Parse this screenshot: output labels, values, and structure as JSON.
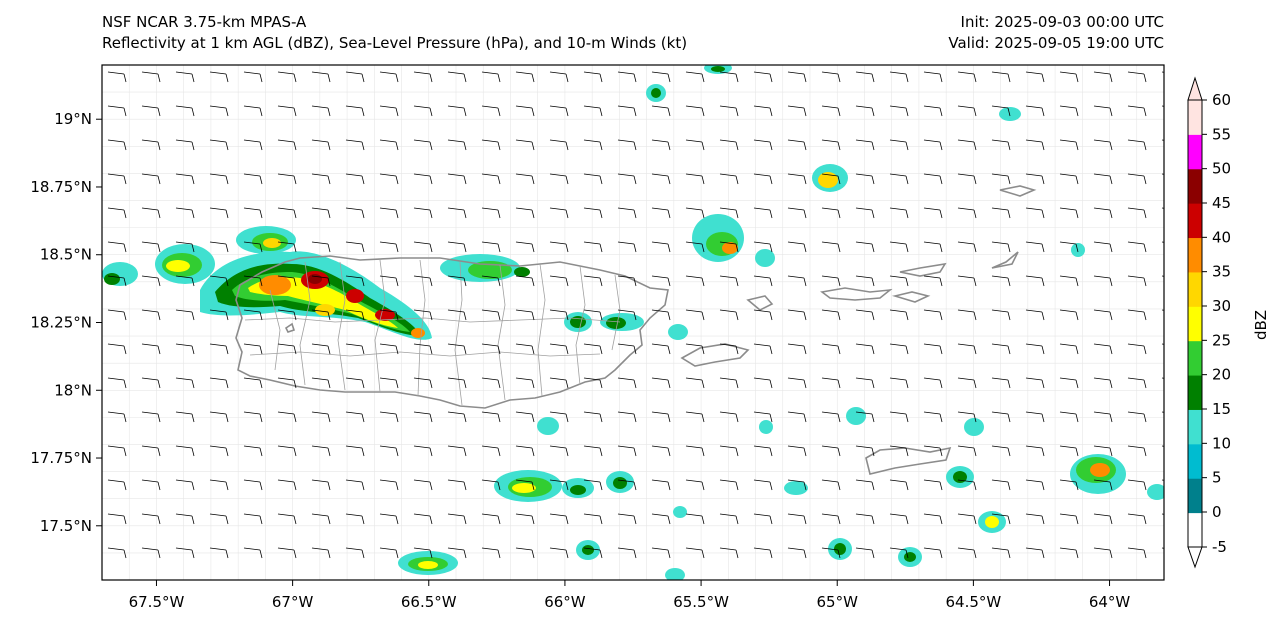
{
  "header": {
    "title_line1": "NSF NCAR 3.75-km MPAS-A",
    "title_line2": "Reflectivity at 1 km AGL (dBZ), Sea-Level Pressure (hPa), and 10-m Winds (kt)",
    "init": "Init: 2025-09-03 00:00 UTC",
    "valid": "Valid: 2025-09-05 19:00 UTC"
  },
  "map": {
    "lon_range": [
      -67.7,
      -63.8
    ],
    "lat_range": [
      17.3,
      19.2
    ],
    "x_ticks": [
      {
        "value": -67.5,
        "label": "67.5°W"
      },
      {
        "value": -67.0,
        "label": "67°W"
      },
      {
        "value": -66.5,
        "label": "66.5°W"
      },
      {
        "value": -66.0,
        "label": "66°W"
      },
      {
        "value": -65.5,
        "label": "65.5°W"
      },
      {
        "value": -65.0,
        "label": "65°W"
      },
      {
        "value": -64.5,
        "label": "64.5°W"
      },
      {
        "value": -64.0,
        "label": "64°W"
      }
    ],
    "y_ticks": [
      {
        "value": 19.0,
        "label": "19°N"
      },
      {
        "value": 18.75,
        "label": "18.75°N"
      },
      {
        "value": 18.5,
        "label": "18.5°N"
      },
      {
        "value": 18.25,
        "label": "18.25°N"
      },
      {
        "value": 18.0,
        "label": "18°N"
      },
      {
        "value": 17.75,
        "label": "17.75°N"
      },
      {
        "value": 17.5,
        "label": "17.5°N"
      }
    ],
    "coastline_color": "#8c8c8c",
    "wind_barb_color": "#000000"
  },
  "colorbar": {
    "label": "dBZ",
    "ticks": [
      "-5",
      "0",
      "5",
      "10",
      "15",
      "20",
      "25",
      "30",
      "35",
      "40",
      "45",
      "50",
      "55",
      "60"
    ],
    "colors": [
      "#ffffff",
      "#00808c",
      "#00bcd0",
      "#40e0d0",
      "#008000",
      "#32cd32",
      "#ffff00",
      "#ffd700",
      "#ff8c00",
      "#cc0000",
      "#8b0000",
      "#ff00ff",
      "#ffe4e1"
    ]
  }
}
